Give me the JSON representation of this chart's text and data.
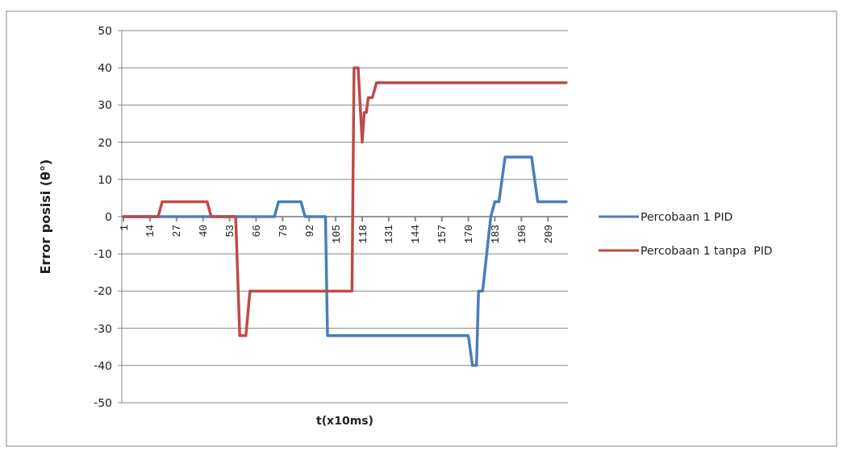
{
  "chart_data": {
    "type": "line",
    "xlabel": "t(x10ms)",
    "ylabel": "Error posisi (θ°)",
    "xlim": [
      1,
      218
    ],
    "xticks": [
      1,
      14,
      27,
      40,
      53,
      66,
      79,
      92,
      105,
      118,
      131,
      144,
      157,
      170,
      183,
      196,
      209
    ],
    "ylim": [
      -50,
      50
    ],
    "yticks": [
      -50,
      -40,
      -30,
      -20,
      -10,
      0,
      10,
      20,
      30,
      40,
      50
    ],
    "grid": "y",
    "legend": "right",
    "marker": "none",
    "line_style": "solid",
    "series": [
      {
        "name": "Percobaan 1 PID",
        "color": "#4a7ebb",
        "x": [
          1,
          75,
          77,
          88,
          90,
          100,
          101,
          170,
          172,
          174,
          175,
          177,
          178,
          181,
          183,
          185,
          186,
          188,
          201,
          203,
          204,
          218
        ],
        "values": [
          0,
          0,
          4,
          4,
          0,
          0,
          -32,
          -32,
          -40,
          -40,
          -20,
          -20,
          -15,
          0,
          4,
          4,
          8,
          16,
          16,
          8,
          4,
          4
        ]
      },
      {
        "name": "Percobaan 1 tanpa  PID",
        "color": "#be4b48",
        "x": [
          1,
          18,
          20,
          42,
          44,
          56,
          58,
          61,
          63,
          113,
          114,
          116,
          118,
          119,
          120,
          121,
          123,
          125,
          218
        ],
        "values": [
          0,
          0,
          4,
          4,
          0,
          0,
          -32,
          -32,
          -20,
          -20,
          40,
          40,
          20,
          28,
          28,
          32,
          32,
          36,
          36
        ]
      }
    ]
  }
}
